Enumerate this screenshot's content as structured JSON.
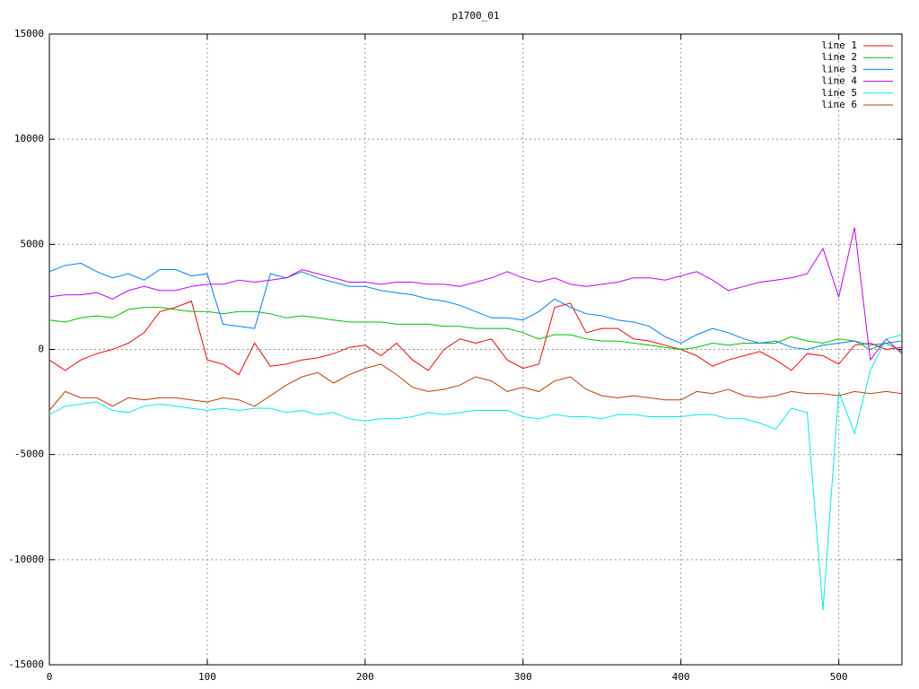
{
  "chart_data": {
    "type": "line",
    "title": "p1700_01",
    "x": [
      0,
      10,
      20,
      30,
      40,
      50,
      60,
      70,
      80,
      90,
      100,
      110,
      120,
      130,
      140,
      150,
      160,
      170,
      180,
      190,
      200,
      210,
      220,
      230,
      240,
      250,
      260,
      270,
      280,
      290,
      300,
      310,
      320,
      330,
      340,
      350,
      360,
      370,
      380,
      390,
      400,
      410,
      420,
      430,
      440,
      450,
      460,
      470,
      480,
      490,
      500,
      510,
      520,
      530,
      540
    ],
    "series": [
      {
        "name": "line 1",
        "color": "#ff0000",
        "values": [
          -500,
          -1000,
          -500,
          -200,
          0,
          300,
          800,
          1800,
          2000,
          2300,
          -500,
          -700,
          -1200,
          300,
          -800,
          -700,
          -500,
          -400,
          -200,
          100,
          200,
          -300,
          300,
          -500,
          -1000,
          0,
          500,
          300,
          500,
          -500,
          -900,
          -700,
          2000,
          2200,
          800,
          1000,
          1000,
          500,
          400,
          200,
          0,
          -300,
          -800,
          -500,
          -300,
          -100,
          -500,
          -1000,
          -200,
          -300,
          -700,
          200,
          300,
          0,
          100
        ]
      },
      {
        "name": "line 2",
        "color": "#00c000",
        "values": [
          1400,
          1300,
          1500,
          1600,
          1500,
          1900,
          2000,
          2000,
          1900,
          1800,
          1800,
          1700,
          1800,
          1800,
          1700,
          1500,
          1600,
          1500,
          1400,
          1300,
          1300,
          1300,
          1200,
          1200,
          1200,
          1100,
          1100,
          1000,
          1000,
          1000,
          800,
          500,
          700,
          700,
          500,
          400,
          400,
          300,
          200,
          100,
          0,
          100,
          300,
          200,
          300,
          300,
          300,
          600,
          400,
          300,
          500,
          400,
          0,
          300,
          -100
        ]
      },
      {
        "name": "line 3",
        "color": "#0080ff",
        "values": [
          3700,
          4000,
          4100,
          3700,
          3400,
          3600,
          3300,
          3800,
          3800,
          3500,
          3600,
          1200,
          1100,
          1000,
          3600,
          3400,
          3700,
          3400,
          3200,
          3000,
          3000,
          2800,
          2700,
          2600,
          2400,
          2300,
          2100,
          1800,
          1500,
          1500,
          1400,
          1800,
          2400,
          2000,
          1700,
          1600,
          1400,
          1300,
          1100,
          600,
          300,
          700,
          1000,
          800,
          500,
          300,
          400,
          100,
          0,
          200,
          300,
          400,
          200,
          300,
          400
        ]
      },
      {
        "name": "line 4",
        "color": "#c000ff",
        "values": [
          2500,
          2600,
          2600,
          2700,
          2400,
          2800,
          3000,
          2800,
          2800,
          3000,
          3100,
          3100,
          3300,
          3200,
          3300,
          3400,
          3800,
          3600,
          3400,
          3200,
          3200,
          3100,
          3200,
          3200,
          3100,
          3100,
          3000,
          3200,
          3400,
          3700,
          3400,
          3200,
          3400,
          3100,
          3000,
          3100,
          3200,
          3400,
          3400,
          3300,
          3500,
          3700,
          3300,
          2800,
          3000,
          3200,
          3300,
          3400,
          3600,
          4800,
          2500,
          5800,
          -500,
          500,
          -200
        ]
      },
      {
        "name": "line 5",
        "color": "#00eeee",
        "values": [
          -3100,
          -2700,
          -2600,
          -2500,
          -2900,
          -3000,
          -2700,
          -2600,
          -2700,
          -2800,
          -2900,
          -2800,
          -2900,
          -2800,
          -2800,
          -3000,
          -2900,
          -3100,
          -3000,
          -3300,
          -3400,
          -3300,
          -3300,
          -3200,
          -3000,
          -3100,
          -3000,
          -2900,
          -2900,
          -2900,
          -3200,
          -3300,
          -3100,
          -3200,
          -3200,
          -3300,
          -3100,
          -3100,
          -3200,
          -3200,
          -3200,
          -3100,
          -3100,
          -3300,
          -3300,
          -3500,
          -3800,
          -2800,
          -3000,
          -12400,
          -2000,
          -4000,
          -1000,
          500,
          700
        ]
      },
      {
        "name": "line 6",
        "color": "#c04000",
        "values": [
          -2900,
          -2000,
          -2300,
          -2300,
          -2700,
          -2300,
          -2400,
          -2300,
          -2300,
          -2400,
          -2500,
          -2300,
          -2400,
          -2700,
          -2200,
          -1700,
          -1300,
          -1100,
          -1600,
          -1200,
          -900,
          -700,
          -1200,
          -1800,
          -2000,
          -1900,
          -1700,
          -1300,
          -1500,
          -2000,
          -1800,
          -2000,
          -1500,
          -1300,
          -1900,
          -2200,
          -2300,
          -2200,
          -2300,
          -2400,
          -2400,
          -2000,
          -2100,
          -1900,
          -2200,
          -2300,
          -2200,
          -2000,
          -2100,
          -2100,
          -2200,
          -2000,
          -2100,
          -2000,
          -2100
        ]
      }
    ],
    "xlim": [
      0,
      540
    ],
    "xticks": [
      0,
      100,
      200,
      300,
      400,
      500
    ],
    "ylim": [
      -15000,
      15000
    ],
    "yticks": [
      -15000,
      -10000,
      -5000,
      0,
      5000,
      10000,
      15000
    ],
    "grid": true,
    "legend": "top-right"
  }
}
